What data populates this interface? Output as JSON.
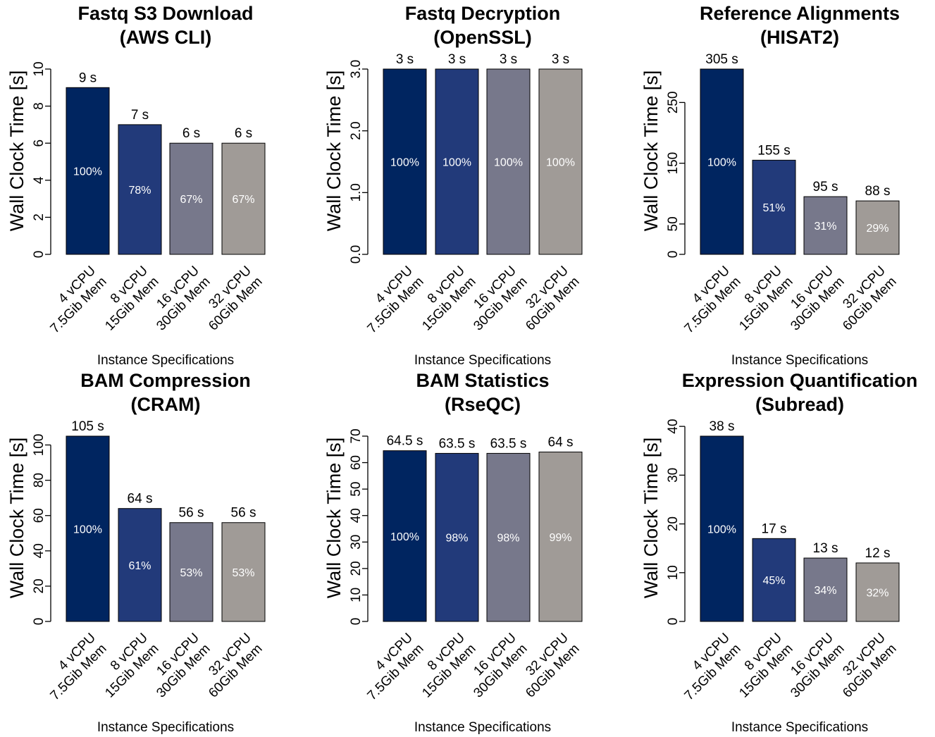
{
  "colors": [
    "#002560",
    "#223a7a",
    "#77788b",
    "#a09b97"
  ],
  "chart_data": [
    {
      "type": "bar",
      "title": [
        "Fastq S3 Download",
        "(AWS CLI)"
      ],
      "xlabel": "Instance Specifications",
      "ylabel": "Wall Clock Time [s]",
      "categories": [
        [
          "4 vCPU",
          "7.5Gib Mem"
        ],
        [
          "8 vCPU",
          "15Gib Mem"
        ],
        [
          "16 vCPU",
          "30Gib Mem"
        ],
        [
          "32 vCPU",
          "60Gib Mem"
        ]
      ],
      "values": [
        9,
        7,
        6,
        6
      ],
      "value_labels": [
        "9 s",
        "7 s",
        "6 s",
        "6 s"
      ],
      "percent_labels": [
        "100%",
        "78%",
        "67%",
        "67%"
      ],
      "ylim": [
        0,
        10
      ],
      "yticks": [
        0,
        2,
        4,
        6,
        8,
        10
      ],
      "ytick_labels": [
        "0",
        "2",
        "4",
        "6",
        "8",
        "10"
      ]
    },
    {
      "type": "bar",
      "title": [
        "Fastq Decryption",
        "(OpenSSL)"
      ],
      "xlabel": "Instance Specifications",
      "ylabel": "Wall Clock Time [s]",
      "categories": [
        [
          "4 vCPU",
          "7.5Gib Mem"
        ],
        [
          "8 vCPU",
          "15Gib Mem"
        ],
        [
          "16 vCPU",
          "30Gib Mem"
        ],
        [
          "32 vCPU",
          "60Gib Mem"
        ]
      ],
      "values": [
        3,
        3,
        3,
        3
      ],
      "value_labels": [
        "3 s",
        "3 s",
        "3 s",
        "3 s"
      ],
      "percent_labels": [
        "100%",
        "100%",
        "100%",
        "100%"
      ],
      "ylim": [
        0,
        3
      ],
      "yticks": [
        0,
        1,
        2,
        3
      ],
      "ytick_labels": [
        "0.0",
        "1.0",
        "2.0",
        "3.0"
      ]
    },
    {
      "type": "bar",
      "title": [
        "Reference Alignments",
        "(HISAT2)"
      ],
      "xlabel": "Instance Specifications",
      "ylabel": "Wall Clock Time [s]",
      "categories": [
        [
          "4 vCPU",
          "7.5Gib Mem"
        ],
        [
          "8 vCPU",
          "15Gib Mem"
        ],
        [
          "16 vCPU",
          "30Gib Mem"
        ],
        [
          "32 vCPU",
          "60Gib Mem"
        ]
      ],
      "values": [
        305,
        155,
        95,
        88
      ],
      "value_labels": [
        "305 s",
        "155 s",
        "95 s",
        "88 s"
      ],
      "percent_labels": [
        "100%",
        "51%",
        "31%",
        "29%"
      ],
      "ylim": [
        0,
        305
      ],
      "yticks": [
        0,
        50,
        150,
        250
      ],
      "ytick_labels": [
        "0",
        "50",
        "150",
        "250"
      ]
    },
    {
      "type": "bar",
      "title": [
        "BAM Compression",
        "(CRAM)"
      ],
      "xlabel": "Instance Specifications",
      "ylabel": "Wall Clock Time [s]",
      "categories": [
        [
          "4 vCPU",
          "7.5Gib Mem"
        ],
        [
          "8 vCPU",
          "15Gib Mem"
        ],
        [
          "16 vCPU",
          "30Gib Mem"
        ],
        [
          "32 vCPU",
          "60Gib Mem"
        ]
      ],
      "values": [
        105,
        64,
        56,
        56
      ],
      "value_labels": [
        "105 s",
        "64 s",
        "56 s",
        "56 s"
      ],
      "percent_labels": [
        "100%",
        "61%",
        "53%",
        "53%"
      ],
      "ylim": [
        0,
        105
      ],
      "yticks": [
        0,
        20,
        40,
        60,
        80,
        100
      ],
      "ytick_labels": [
        "0",
        "20",
        "40",
        "60",
        "80",
        "100"
      ]
    },
    {
      "type": "bar",
      "title": [
        "BAM Statistics",
        "(RseQC)"
      ],
      "xlabel": "Instance Specifications",
      "ylabel": "Wall Clock Time [s]",
      "categories": [
        [
          "4 vCPU",
          "7.5Gib Mem"
        ],
        [
          "8 vCPU",
          "15Gib Mem"
        ],
        [
          "16 vCPU",
          "30Gib Mem"
        ],
        [
          "32 vCPU",
          "60Gib Mem"
        ]
      ],
      "values": [
        64.5,
        63.5,
        63.5,
        64
      ],
      "value_labels": [
        "64.5 s",
        "63.5 s",
        "63.5 s",
        "64 s"
      ],
      "percent_labels": [
        "100%",
        "98%",
        "98%",
        "99%"
      ],
      "ylim": [
        0,
        70
      ],
      "yticks": [
        0,
        10,
        20,
        30,
        40,
        50,
        60,
        70
      ],
      "ytick_labels": [
        "0",
        "10",
        "20",
        "30",
        "40",
        "50",
        "60",
        "70"
      ]
    },
    {
      "type": "bar",
      "title": [
        "Expression Quantification",
        "(Subread)"
      ],
      "xlabel": "Instance Specifications",
      "ylabel": "Wall Clock Time [s]",
      "categories": [
        [
          "4 vCPU",
          "7.5Gib Mem"
        ],
        [
          "8 vCPU",
          "15Gib Mem"
        ],
        [
          "16 vCPU",
          "30Gib Mem"
        ],
        [
          "32 vCPU",
          "60Gib Mem"
        ]
      ],
      "values": [
        38,
        17,
        13,
        12
      ],
      "value_labels": [
        "38 s",
        "17 s",
        "13 s",
        "12 s"
      ],
      "percent_labels": [
        "100%",
        "45%",
        "34%",
        "32%"
      ],
      "ylim": [
        0,
        38
      ],
      "yticks": [
        0,
        10,
        20,
        30,
        40
      ],
      "ytick_labels": [
        "0",
        "10",
        "20",
        "30",
        "40"
      ]
    }
  ]
}
